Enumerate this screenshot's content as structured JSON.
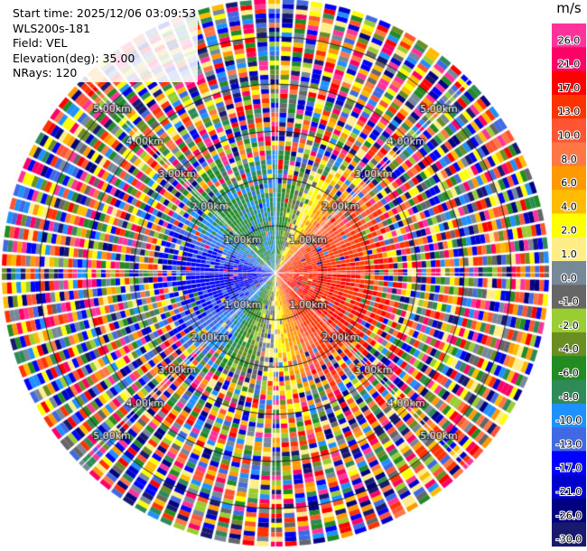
{
  "header": {
    "start_time": "Start time: 2025/12/06 03:09:53",
    "instrument": "WLS200s-181",
    "field": "Field: VEL",
    "elevation": "Elevation(deg): 35.00",
    "nrays": "NRays: 120"
  },
  "colorbar": {
    "units": "m/s",
    "bins": [
      {
        "label": "26.0",
        "color": "#ff3399"
      },
      {
        "label": "21.0",
        "color": "#ff0066"
      },
      {
        "label": "17.0",
        "color": "#ff0000"
      },
      {
        "label": "13.0",
        "color": "#ff3300"
      },
      {
        "label": "10.0",
        "color": "#ff5533"
      },
      {
        "label": "8.0",
        "color": "#ff7744"
      },
      {
        "label": "6.0",
        "color": "#ff9900"
      },
      {
        "label": "4.0",
        "color": "#ffbb00"
      },
      {
        "label": "2.0",
        "color": "#ffff00"
      },
      {
        "label": "1.0",
        "color": "#ffee88"
      },
      {
        "label": "0.0",
        "color": "#778899"
      },
      {
        "label": "-1.0",
        "color": "#666666"
      },
      {
        "label": "-2.0",
        "color": "#9acd32"
      },
      {
        "label": "-4.0",
        "color": "#6b8e23"
      },
      {
        "label": "-6.0",
        "color": "#228b22"
      },
      {
        "label": "-8.0",
        "color": "#2e8b57"
      },
      {
        "label": "-10.0",
        "color": "#1e90ff"
      },
      {
        "label": "-13.0",
        "color": "#4169e1"
      },
      {
        "label": "-17.0",
        "color": "#0000ff"
      },
      {
        "label": "-21.0",
        "color": "#0000cd"
      },
      {
        "label": "-26.0",
        "color": "#000080"
      },
      {
        "label": "-30.0",
        "color": "#191970"
      }
    ]
  },
  "chart_data": {
    "type": "heatmap",
    "projection": "polar PPI",
    "field": "VEL",
    "units": "m/s",
    "nrays": 120,
    "range_rings_km": [
      1,
      2,
      3,
      4,
      5
    ],
    "ring_labels": [
      "1.00km",
      "2.00km",
      "3.00km",
      "4.00km",
      "5.00km"
    ],
    "near_range_pattern": [
      {
        "sector": "west",
        "approx_velocity_ms": -17
      },
      {
        "sector": "north-west",
        "approx_velocity_ms": -6
      },
      {
        "sector": "north",
        "approx_velocity_ms": -8
      },
      {
        "sector": "north-east",
        "approx_velocity_ms": 10
      },
      {
        "sector": "east",
        "approx_velocity_ms": 17
      },
      {
        "sector": "south-east",
        "approx_velocity_ms": 17
      },
      {
        "sector": "south",
        "approx_velocity_ms": 2
      },
      {
        "sector": "south-west",
        "approx_velocity_ms": -10
      }
    ],
    "far_range": "noise (random velocities across full scale)",
    "legend": "right colorbar"
  }
}
